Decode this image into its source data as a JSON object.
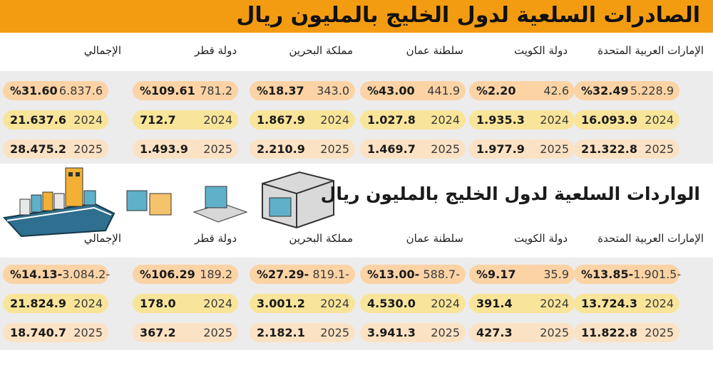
{
  "title": "الصادرات السلعية لدول الخليج بالمليون ريال",
  "imports_title": "الواردات السلعية لدول الخليج بالمليون ريال",
  "columns": [
    "الإمارات العربية المتحدة",
    "دولة الكويت",
    "سلطنة عمان",
    "مملكة البحرين",
    "دولة قطر",
    "الإجمالي"
  ],
  "colors": {
    "title_bar": "#f39c12",
    "pill_change": "#fbd3a5",
    "pill_2024": "#f9e59a",
    "pill_2025": "#fbe2c4",
    "band": "#ececec"
  },
  "exports": {
    "change": [
      {
        "value": "5.228.9",
        "pct": "%32.49"
      },
      {
        "value": "42.6",
        "pct": "%2.20"
      },
      {
        "value": "441.9",
        "pct": "%43.00"
      },
      {
        "value": "343.0",
        "pct": "%18.37"
      },
      {
        "value": "781.2",
        "pct": "%109.61"
      },
      {
        "value": "6.837.6",
        "pct": "%31.60"
      }
    ],
    "y2024": [
      {
        "year": "2024",
        "value": "16.093.9"
      },
      {
        "year": "2024",
        "value": "1.935.3"
      },
      {
        "year": "2024",
        "value": "1.027.8"
      },
      {
        "year": "2024",
        "value": "1.867.9"
      },
      {
        "year": "2024",
        "value": "712.7"
      },
      {
        "year": "2024",
        "value": "21.637.6"
      }
    ],
    "y2025": [
      {
        "year": "2025",
        "value": "21.322.8"
      },
      {
        "year": "2025",
        "value": "1.977.9"
      },
      {
        "year": "2025",
        "value": "1.469.7"
      },
      {
        "year": "2025",
        "value": "2.210.9"
      },
      {
        "year": "2025",
        "value": "1.493.9"
      },
      {
        "year": "2025",
        "value": "28.475.2"
      }
    ]
  },
  "imports": {
    "change": [
      {
        "value": "1.901.5-",
        "pct": "%13.85-"
      },
      {
        "value": "35.9",
        "pct": "%9.17"
      },
      {
        "value": "588.7-",
        "pct": "%13.00-"
      },
      {
        "value": "819.1-",
        "pct": "%27.29-"
      },
      {
        "value": "189.2",
        "pct": "%106.29"
      },
      {
        "value": "3.084.2-",
        "pct": "%14.13-"
      }
    ],
    "y2024": [
      {
        "year": "2024",
        "value": "13.724.3"
      },
      {
        "year": "2024",
        "value": "391.4"
      },
      {
        "year": "2024",
        "value": "4.530.0"
      },
      {
        "year": "2024",
        "value": "3.001.2"
      },
      {
        "year": "2024",
        "value": "178.0"
      },
      {
        "year": "2024",
        "value": "21.824.9"
      }
    ],
    "y2025": [
      {
        "year": "2025",
        "value": "11.822.8"
      },
      {
        "year": "2025",
        "value": "427.3"
      },
      {
        "year": "2025",
        "value": "3.941.3"
      },
      {
        "year": "2025",
        "value": "2.182.1"
      },
      {
        "year": "2025",
        "value": "367.2"
      },
      {
        "year": "2025",
        "value": "18.740.7"
      }
    ]
  },
  "chart_data": {
    "type": "table",
    "title": "الصادرات السلعية لدول الخليج بالمليون ريال",
    "categories": [
      "الإمارات العربية المتحدة",
      "دولة الكويت",
      "سلطنة عمان",
      "مملكة البحرين",
      "دولة قطر",
      "الإجمالي"
    ],
    "tables": [
      {
        "title": "الصادرات السلعية لدول الخليج بالمليون ريال",
        "series": [
          {
            "name": "2024",
            "values": [
              16093.9,
              1935.3,
              1027.8,
              1867.9,
              712.7,
              21637.6
            ]
          },
          {
            "name": "2025",
            "values": [
              21322.8,
              1977.9,
              1469.7,
              2210.9,
              1493.9,
              28475.2
            ]
          }
        ],
        "change_value": [
          5228.9,
          42.6,
          441.9,
          343.0,
          781.2,
          6837.6
        ],
        "change_pct": [
          32.49,
          2.2,
          43.0,
          18.37,
          109.61,
          31.6
        ]
      },
      {
        "title": "الواردات السلعية لدول الخليج بالمليون ريال",
        "series": [
          {
            "name": "2024",
            "values": [
              13724.3,
              391.4,
              4530.0,
              3001.2,
              178.0,
              21824.9
            ]
          },
          {
            "name": "2025",
            "values": [
              11822.8,
              427.3,
              3941.3,
              2182.1,
              367.2,
              18740.7
            ]
          }
        ],
        "change_value": [
          -1901.5,
          35.9,
          -588.7,
          -819.1,
          189.2,
          -3084.2
        ],
        "change_pct": [
          -13.85,
          9.17,
          -13.0,
          -27.29,
          106.29,
          -14.13
        ]
      }
    ]
  }
}
